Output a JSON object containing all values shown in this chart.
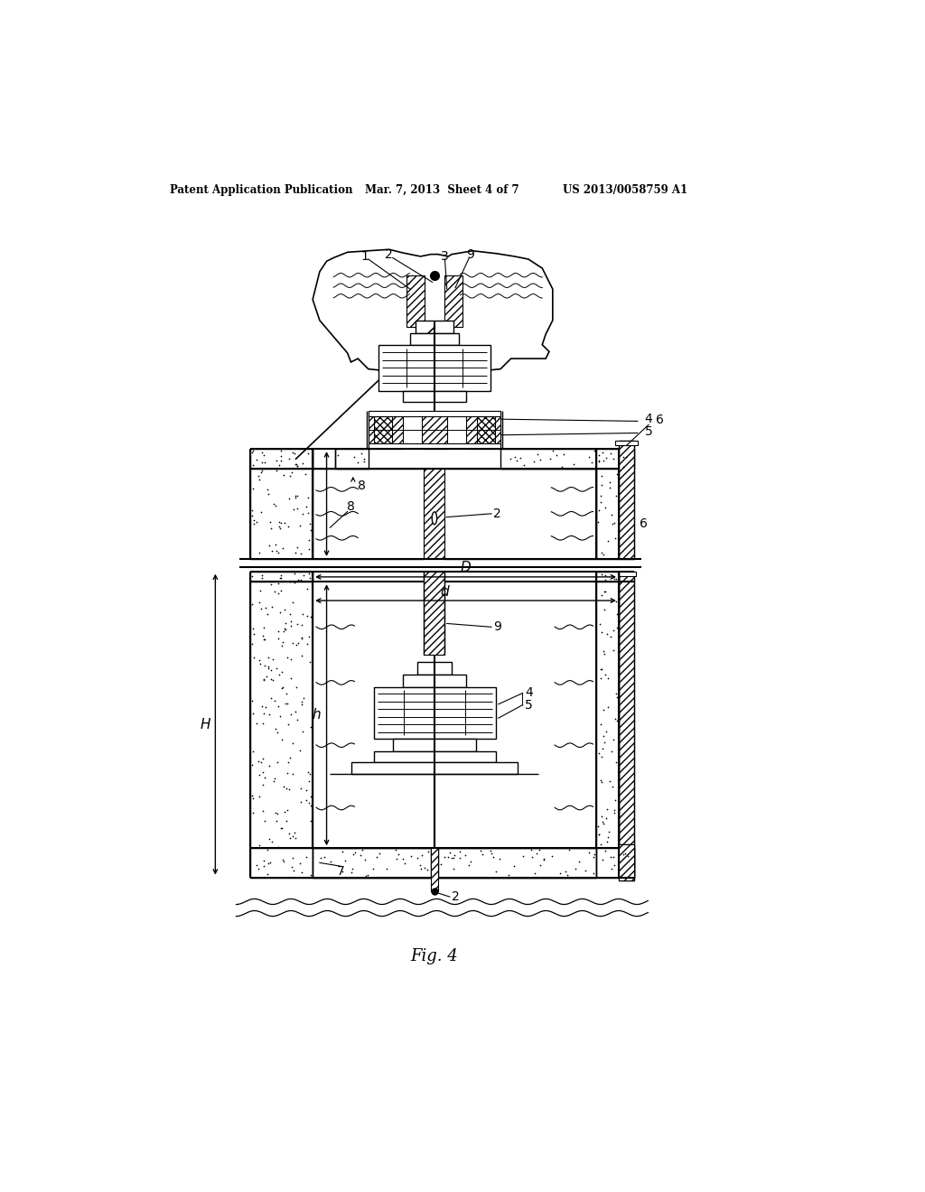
{
  "title_left": "Patent Application Publication",
  "title_mid": "Mar. 7, 2013  Sheet 4 of 7",
  "title_right": "US 2013/0058759 A1",
  "fig_label": "Fig. 4",
  "bg_color": "#ffffff",
  "line_color": "#000000"
}
